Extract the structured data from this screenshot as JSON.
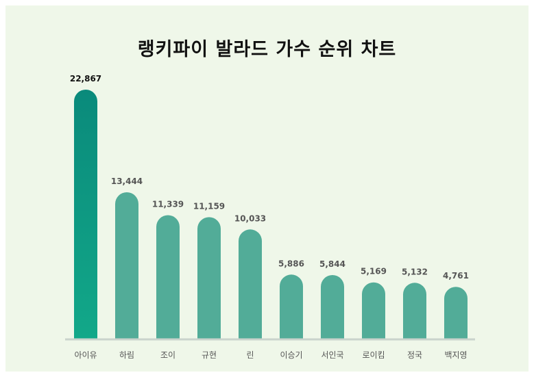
{
  "chart_data": {
    "type": "bar",
    "title": "랭키파이 발라드 가수 순위 차트",
    "categories": [
      "아이유",
      "하림",
      "조이",
      "규현",
      "린",
      "이승기",
      "서인국",
      "로이킴",
      "정국",
      "백지영"
    ],
    "values": [
      22867,
      13444,
      11339,
      11159,
      10033,
      5886,
      5844,
      5169,
      5132,
      4761
    ],
    "value_labels": [
      "22,867",
      "13,444",
      "11,339",
      "11,159",
      "10,033",
      "5,886",
      "5,844",
      "5,169",
      "5,132",
      "4,761"
    ],
    "xlabel": "",
    "ylabel": "",
    "ylim": [
      0,
      22867
    ],
    "grid": false,
    "legend": "none",
    "colors": {
      "top_bar_gradient": [
        "#0a8a7b",
        "#12a889"
      ],
      "bar": "#52ac98",
      "baseline": "#c9d3cc",
      "top_value_label": "#111111",
      "value_label": "#555555",
      "category_label": "#555555",
      "background": "#eff7e9"
    }
  }
}
